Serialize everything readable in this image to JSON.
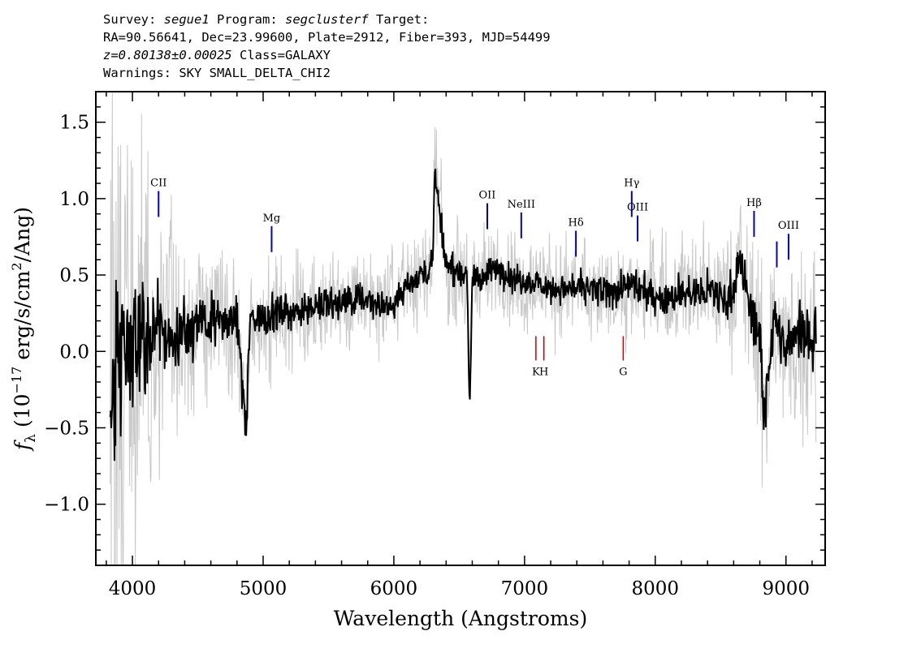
{
  "header": {
    "survey_label": "Survey:",
    "survey": "segue1",
    "program_label": "Program:",
    "program": "segclusterf",
    "target_label": "Target:",
    "line2": "RA=90.56641, Dec=23.99600, Plate=2912, Fiber=393, MJD=54499",
    "redshift": "z=0.80138±0.00025",
    "class": "Class=GALAXY",
    "warnings": "Warnings: SKY SMALL_DELTA_CHI2"
  },
  "chart_data": {
    "type": "line",
    "title": "",
    "xlabel": "Wavelength (Angstroms)",
    "ylabel": "fλ (10⁻¹⁷ erg/s/cm²/Ang)",
    "ylabel_parts": {
      "f": "f",
      "sub": "λ",
      "pre": " (10",
      "exp": "−17",
      "mid": " erg/s/cm",
      "exp2": "2",
      "post": "/Ang)"
    },
    "xlim": [
      3720,
      9300
    ],
    "ylim": [
      -1.4,
      1.7
    ],
    "xticks": [
      4000,
      5000,
      6000,
      7000,
      8000,
      9000
    ],
    "xtick_labels": [
      "4000",
      "5000",
      "6000",
      "7000",
      "8000",
      "9000"
    ],
    "yticks": [
      1.5,
      1.0,
      0.5,
      0.0,
      -0.5,
      -1.0
    ],
    "ytick_labels": [
      "1.5",
      "1.0",
      "0.5",
      "0.0",
      "−0.5",
      "−1.0"
    ],
    "series": [
      {
        "role": "flux",
        "color": "#000000",
        "x": [
          3830,
          3900,
          4000,
          4100,
          4200,
          4300,
          4400,
          4500,
          4600,
          4700,
          4800,
          4870,
          4900,
          5000,
          5100,
          5200,
          5300,
          5400,
          5500,
          5600,
          5700,
          5800,
          5900,
          6000,
          6100,
          6200,
          6300,
          6310,
          6400,
          6500,
          6560,
          6580,
          6600,
          6700,
          6800,
          6900,
          7000,
          7100,
          7200,
          7300,
          7400,
          7500,
          7600,
          7700,
          7800,
          7900,
          8000,
          8100,
          8200,
          8300,
          8400,
          8500,
          8600,
          8650,
          8700,
          8800,
          8830,
          8900,
          9000,
          9100,
          9200,
          9230
        ],
        "y": [
          -0.4,
          -0.1,
          0.05,
          0.1,
          0.12,
          0.1,
          0.15,
          0.18,
          0.2,
          0.2,
          0.18,
          -0.5,
          0.2,
          0.22,
          0.25,
          0.25,
          0.28,
          0.3,
          0.3,
          0.32,
          0.33,
          0.35,
          0.3,
          0.32,
          0.45,
          0.5,
          0.55,
          1.2,
          0.55,
          0.52,
          0.5,
          -0.4,
          0.48,
          0.5,
          0.55,
          0.48,
          0.45,
          0.45,
          0.42,
          0.4,
          0.42,
          0.4,
          0.38,
          0.4,
          0.42,
          0.4,
          0.38,
          0.35,
          0.4,
          0.38,
          0.4,
          0.35,
          0.4,
          0.62,
          0.35,
          0.1,
          -0.45,
          0.2,
          0.0,
          0.15,
          0.1,
          0.1
        ]
      },
      {
        "role": "error",
        "color": "#c8c8c8",
        "x": [
          3830,
          3900,
          4000,
          4100,
          4200,
          4300,
          4500,
          4700,
          5000,
          5300,
          5600,
          6000,
          6300,
          6600,
          7000,
          7400,
          7800,
          8200,
          8600,
          8830,
          9000,
          9230
        ],
        "y": [
          0.9,
          0.75,
          0.6,
          0.45,
          0.35,
          0.28,
          0.22,
          0.18,
          0.15,
          0.14,
          0.13,
          0.12,
          0.12,
          0.12,
          0.12,
          0.12,
          0.13,
          0.14,
          0.16,
          0.25,
          0.2,
          0.3
        ]
      }
    ],
    "line_labels": [
      {
        "name": "CII",
        "x": 4200,
        "kind": "emission",
        "color": "#0000cc",
        "y": 0.88
      },
      {
        "name": "Mg",
        "x": 5065,
        "kind": "emission",
        "color": "#0000cc",
        "y": 0.65
      },
      {
        "name": "OII",
        "x": 6715,
        "kind": "emission",
        "color": "#0000cc",
        "y": 0.8
      },
      {
        "name": "NeIII",
        "x": 6975,
        "kind": "emission",
        "color": "#0000cc",
        "y": 0.74
      },
      {
        "name": "Hδ",
        "x": 7393,
        "kind": "emission",
        "color": "#0000cc",
        "y": 0.62
      },
      {
        "name": "Hγ",
        "x": 7820,
        "kind": "emission",
        "color": "#0000cc",
        "y": 0.88
      },
      {
        "name": "OIII",
        "x": 7865,
        "kind": "emission",
        "color": "#0000cc",
        "y": 0.72
      },
      {
        "name": "Hβ",
        "x": 8756,
        "kind": "emission",
        "color": "#0000cc",
        "y": 0.75
      },
      {
        "name": "OIII",
        "x": 8930,
        "kind": "emission",
        "color": "#0000cc",
        "y": 0.55,
        "unlabeled": true
      },
      {
        "name": "OIII",
        "x": 9020,
        "kind": "emission",
        "color": "#0000cc",
        "y": 0.6
      },
      {
        "name": "K",
        "x": 7087,
        "kind": "absorption",
        "color": "#cc0000",
        "y": 0.1
      },
      {
        "name": "H",
        "x": 7148,
        "kind": "absorption",
        "color": "#cc0000",
        "y": 0.1
      },
      {
        "name": "G",
        "x": 7755,
        "kind": "absorption",
        "color": "#cc0000",
        "y": 0.1
      }
    ]
  }
}
